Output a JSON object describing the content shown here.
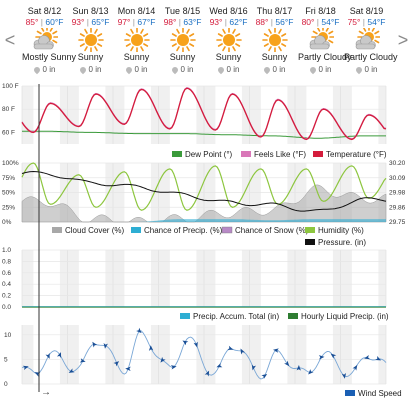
{
  "nav": {
    "prev": "<",
    "next": ">"
  },
  "days": [
    {
      "date": "Sat 8/12",
      "hi": "85°",
      "lo": "60°F",
      "cond": "Mostly Sunny",
      "precip": "0 in",
      "icon": "partly-sunny-icon"
    },
    {
      "date": "Sun 8/13",
      "hi": "93°",
      "lo": "65°F",
      "cond": "Sunny",
      "precip": "0 in",
      "icon": "sun-icon"
    },
    {
      "date": "Mon 8/14",
      "hi": "97°",
      "lo": "67°F",
      "cond": "Sunny",
      "precip": "0 in",
      "icon": "sun-icon"
    },
    {
      "date": "Tue 8/15",
      "hi": "98°",
      "lo": "63°F",
      "cond": "Sunny",
      "precip": "0 in",
      "icon": "sun-icon"
    },
    {
      "date": "Wed 8/16",
      "hi": "93°",
      "lo": "62°F",
      "cond": "Sunny",
      "precip": "0 in",
      "icon": "sun-icon"
    },
    {
      "date": "Thu 8/17",
      "hi": "88°",
      "lo": "56°F",
      "cond": "Sunny",
      "precip": "0 in",
      "icon": "sun-icon"
    },
    {
      "date": "Fri 8/18",
      "hi": "80°",
      "lo": "54°F",
      "cond": "Partly Cloudy",
      "precip": "0 in",
      "icon": "partly-cloudy-icon"
    },
    {
      "date": "Sat 8/19",
      "hi": "75°",
      "lo": "54°F",
      "cond": "Partly Cloudy",
      "precip": "0 in",
      "icon": "partly-cloudy-icon"
    }
  ],
  "colors": {
    "temperature": "#d41c3c",
    "feels_like": "#d977b8",
    "dew_point": "#3a9a3a",
    "humidity": "#8dc63f",
    "pressure": "#111111",
    "cloud_cover": "#a8a8a8",
    "chance_precip": "#2eaed3",
    "chance_snow": "#b88ac6",
    "precip_total": "#2eaed3",
    "hourly_precip": "#2e7d32",
    "wind": "#1a5fb4"
  },
  "chart_data": [
    {
      "type": "line",
      "y_ticks": [
        "100 F",
        "80 F",
        "60 F"
      ],
      "ylim": [
        50,
        100
      ],
      "series": [
        {
          "name": "Temperature (°F)",
          "daily_high": [
            85,
            93,
            97,
            98,
            93,
            88,
            80,
            75
          ],
          "daily_low": [
            60,
            65,
            67,
            63,
            62,
            56,
            54,
            54
          ]
        },
        {
          "name": "Feels Like (°F)"
        },
        {
          "name": "Dew Point (°)",
          "approx": [
            61,
            60,
            59,
            59,
            58,
            57,
            55,
            57
          ]
        }
      ],
      "legend": [
        "Dew Point (°)",
        "Feels Like (°F)",
        "Temperature (°F)"
      ]
    },
    {
      "type": "area",
      "y_ticks_left": [
        "100%",
        "75%",
        "50%",
        "25%",
        "0%"
      ],
      "y_ticks_right": [
        "30.20",
        "30.09",
        "29.98",
        "29.86",
        "29.75"
      ],
      "series": [
        {
          "name": "Humidity (%)",
          "daily_peak": [
            100,
            80,
            85,
            90,
            95,
            90,
            90,
            95
          ],
          "daily_min": [
            30,
            25,
            20,
            20,
            25,
            30,
            35,
            40
          ]
        },
        {
          "name": "Pressure. (in)",
          "approx": [
            30.12,
            30.05,
            30.02,
            29.96,
            29.9,
            29.88,
            29.83,
            29.92
          ]
        },
        {
          "name": "Cloud Cover (%)",
          "approx": [
            35,
            5,
            0,
            5,
            15,
            20,
            55,
            40
          ]
        },
        {
          "name": "Chance of Precip. (%)",
          "approx": [
            0,
            0,
            0,
            5,
            5,
            3,
            5,
            5
          ]
        },
        {
          "name": "Chance of Snow (%)",
          "approx": [
            0,
            0,
            0,
            0,
            0,
            0,
            0,
            0
          ]
        }
      ],
      "legend": [
        "Cloud Cover (%)",
        "Chance of Precip. (%)",
        "Chance of Snow (%)",
        "Humidity (%)",
        "Pressure. (in)"
      ]
    },
    {
      "type": "line",
      "y_ticks": [
        "1.0",
        "0.8",
        "0.6",
        "0.4",
        "0.2",
        "0.0"
      ],
      "ylim": [
        0,
        1
      ],
      "series": [
        {
          "name": "Precip. Accum. Total (in)",
          "values": [
            0,
            0,
            0,
            0,
            0,
            0,
            0,
            0
          ]
        },
        {
          "name": "Hourly Liquid Precip. (in)",
          "values": [
            0,
            0,
            0,
            0,
            0,
            0,
            0,
            0
          ]
        }
      ],
      "legend": [
        "Precip. Accum. Total (in)",
        "Hourly Liquid Precip. (in)"
      ]
    },
    {
      "type": "line",
      "y_ticks": [
        "10",
        "5",
        "0"
      ],
      "ylim": [
        0,
        12
      ],
      "series": [
        {
          "name": "Wind Speed",
          "daily_peak": [
            6,
            9,
            10,
            9,
            8,
            6,
            6,
            6
          ],
          "daily_min": [
            2,
            3,
            3,
            3,
            2,
            2,
            2,
            2
          ]
        }
      ],
      "legend": [
        "Wind Speed"
      ]
    }
  ],
  "bottom_arrow": "→"
}
